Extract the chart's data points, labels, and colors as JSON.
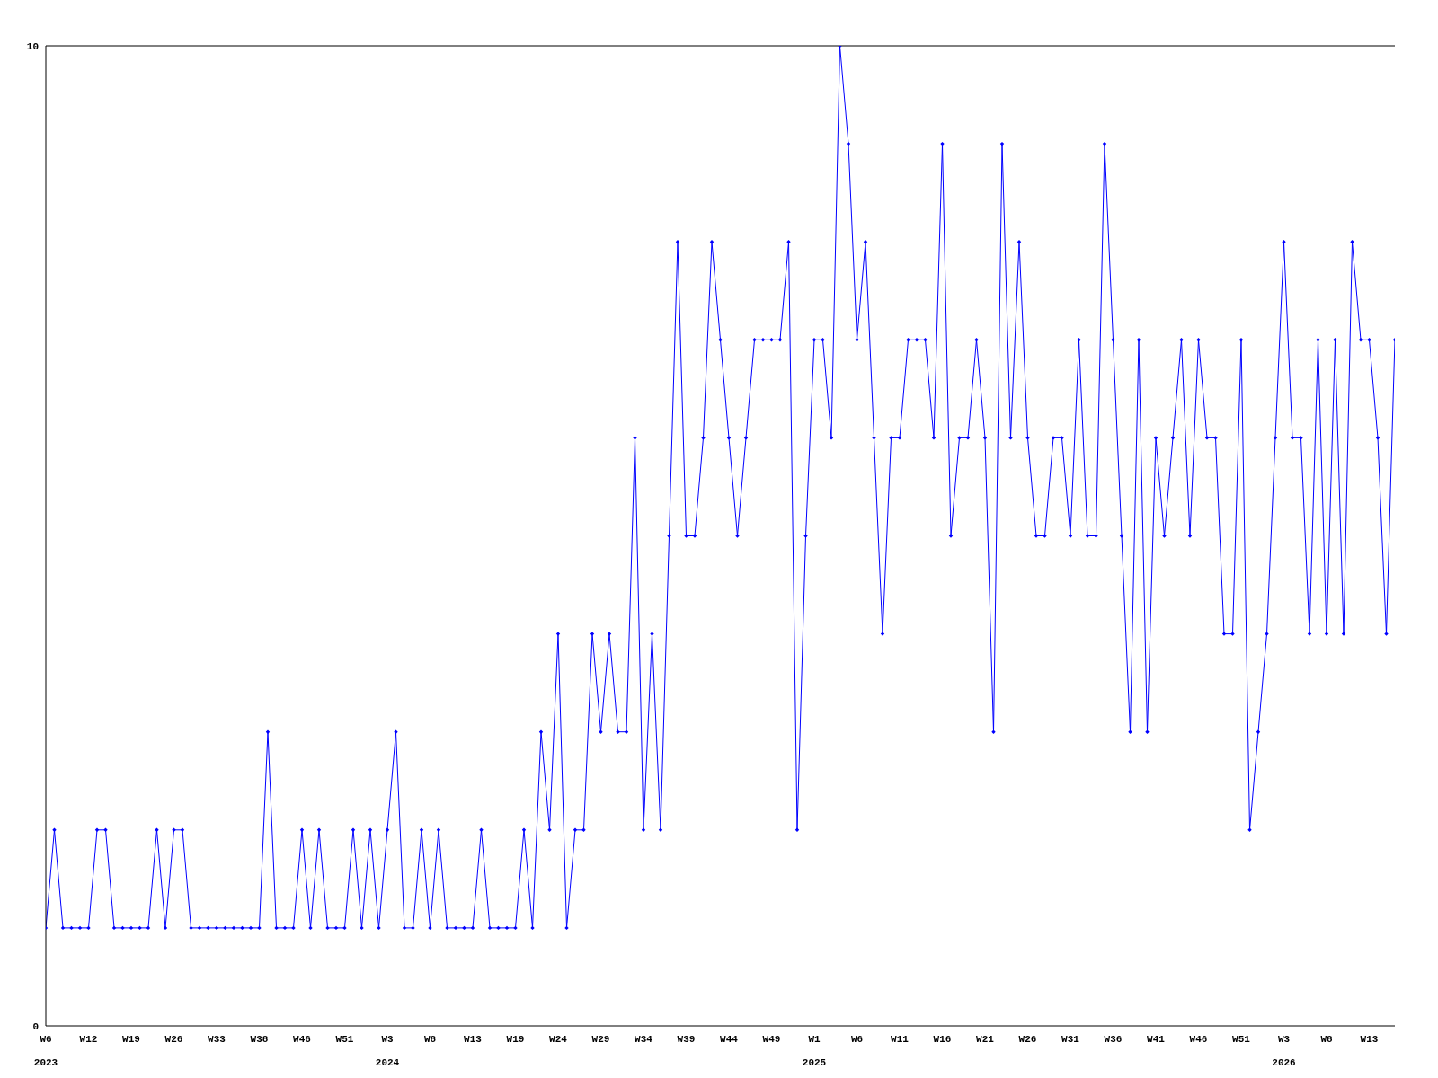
{
  "chart_data": {
    "type": "line",
    "categories": [
      "W6\n2023",
      null,
      null,
      null,
      null,
      "W12",
      null,
      null,
      null,
      null,
      "W19",
      null,
      null,
      null,
      null,
      "W26",
      null,
      null,
      null,
      null,
      "W33",
      null,
      null,
      null,
      null,
      "W38",
      null,
      null,
      null,
      null,
      "W46",
      null,
      null,
      null,
      null,
      "W51",
      null,
      null,
      null,
      null,
      "W3\n2024",
      null,
      null,
      null,
      null,
      "W8",
      null,
      null,
      null,
      null,
      "W13",
      null,
      null,
      null,
      null,
      "W19",
      null,
      null,
      null,
      null,
      "W24",
      null,
      null,
      null,
      null,
      "W29",
      null,
      null,
      null,
      null,
      "W34",
      null,
      null,
      null,
      null,
      "W39",
      null,
      null,
      null,
      null,
      "W44",
      null,
      null,
      null,
      null,
      "W49",
      null,
      null,
      null,
      null,
      "W1\n2025",
      null,
      null,
      null,
      null,
      "W6",
      null,
      null,
      null,
      null,
      "W11",
      null,
      null,
      null,
      null,
      "W16",
      null,
      null,
      null,
      null,
      "W21",
      null,
      null,
      null,
      null,
      "W26",
      null,
      null,
      null,
      null,
      "W31",
      null,
      null,
      null,
      null,
      "W36",
      null,
      null,
      null,
      null,
      "W41",
      null,
      null,
      null,
      null,
      "W46",
      null,
      null,
      null,
      null,
      "W51",
      null,
      null,
      null,
      null,
      "W3\n2026",
      null,
      null,
      null,
      null,
      "W8",
      null,
      null,
      null,
      null,
      "W13",
      null,
      null,
      null
    ],
    "series": [
      {
        "color": "#0000ff",
        "values": [
          1,
          2,
          1,
          1,
          1,
          1,
          2,
          2,
          1,
          1,
          1,
          1,
          1,
          2,
          1,
          2,
          2,
          1,
          1,
          1,
          1,
          1,
          1,
          1,
          1,
          1,
          3,
          1,
          1,
          1,
          2,
          1,
          2,
          1,
          1,
          1,
          2,
          1,
          2,
          1,
          2,
          3,
          1,
          1,
          2,
          1,
          2,
          1,
          1,
          1,
          1,
          2,
          1,
          1,
          1,
          1,
          2,
          1,
          3,
          2,
          4,
          1,
          2,
          2,
          4,
          3,
          4,
          3,
          3,
          6,
          2,
          4,
          2,
          5,
          8,
          5,
          5,
          6,
          8,
          7,
          6,
          5,
          6,
          7,
          7,
          7,
          7,
          8,
          2,
          5,
          7,
          7,
          6,
          10,
          9,
          7,
          8,
          6,
          4,
          6,
          6,
          7,
          7,
          7,
          6,
          9,
          5,
          6,
          6,
          7,
          6,
          3,
          9,
          6,
          8,
          6,
          5,
          5,
          6,
          6,
          5,
          7,
          5,
          5,
          9,
          7,
          5,
          3,
          7,
          3,
          6,
          5,
          6,
          7,
          5,
          7,
          6,
          6,
          4,
          4,
          7,
          2,
          3,
          4,
          6,
          8,
          6,
          6,
          4,
          7,
          4,
          7,
          4,
          8,
          7,
          7,
          6,
          4,
          7
        ]
      }
    ],
    "ylim": [
      0,
      10
    ],
    "yticks": [
      0,
      10
    ],
    "legend": false,
    "marker": "diamond",
    "line_style": "solid"
  }
}
